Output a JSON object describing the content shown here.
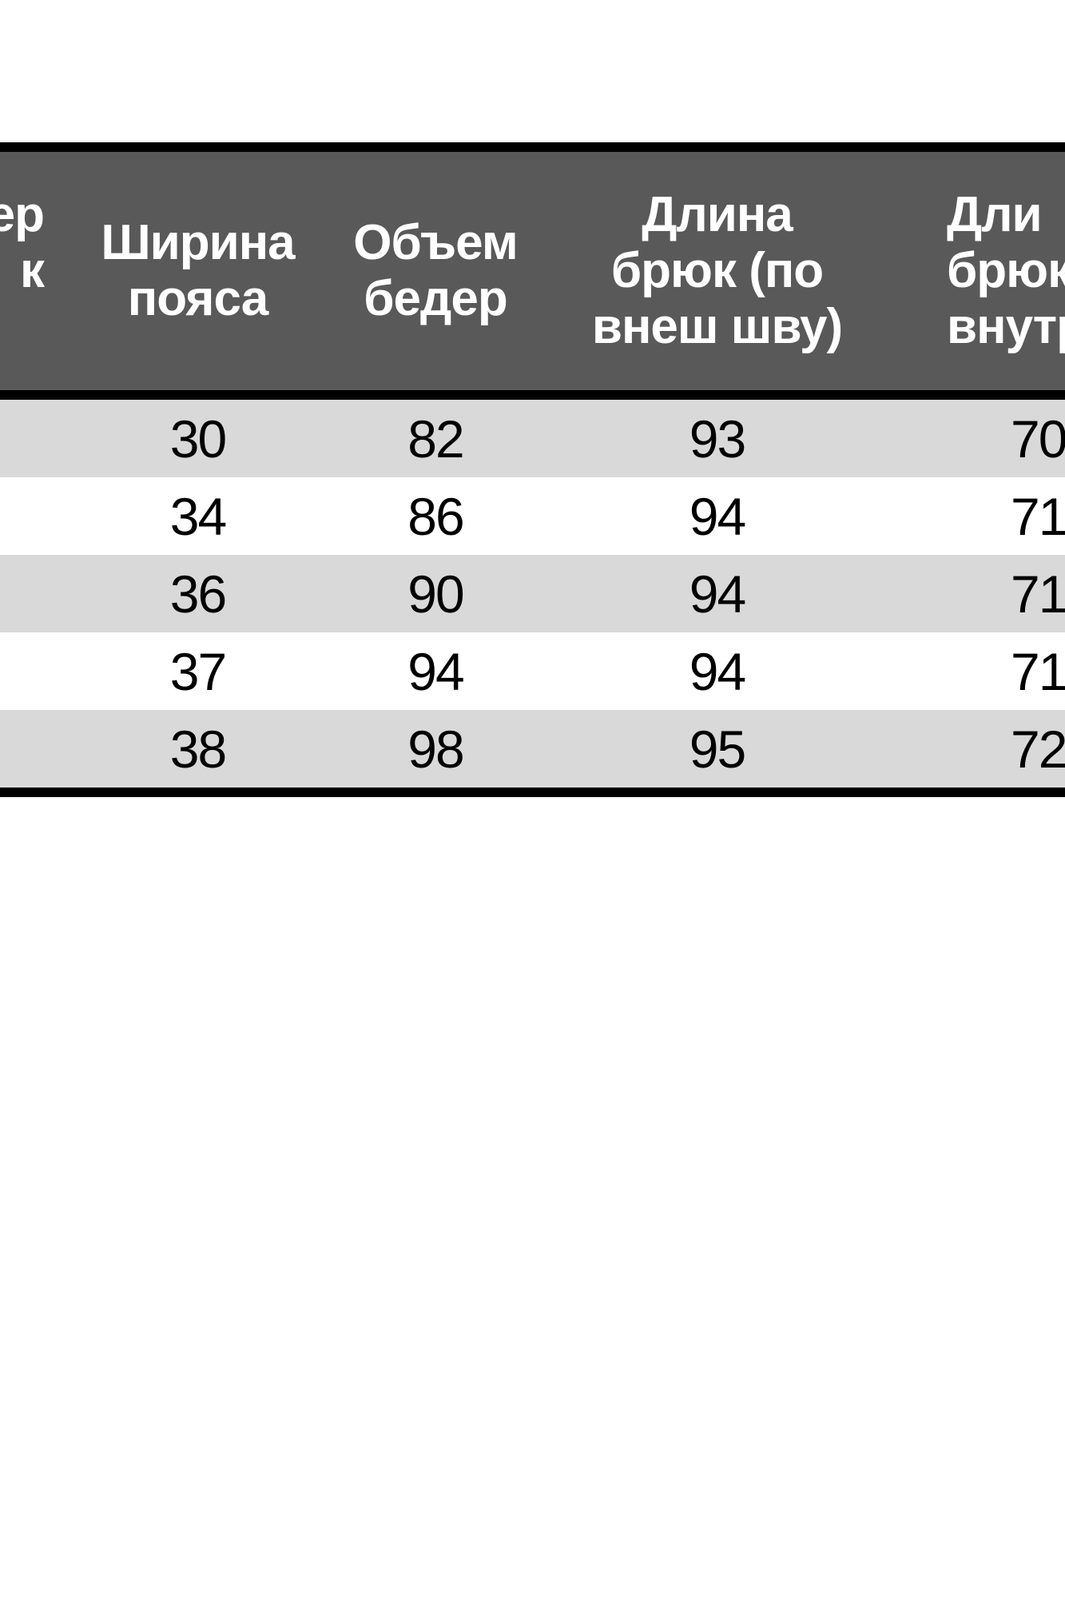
{
  "chart_data": {
    "type": "table",
    "title": "",
    "columns": [
      {
        "key": "size",
        "header_lines": [
          "ер",
          "к",
          ""
        ],
        "clipped": "left",
        "values": [
          "",
          "",
          "",
          "",
          ""
        ]
      },
      {
        "key": "waist_width",
        "header_lines": [
          "Ширина",
          "пояса"
        ],
        "values": [
          "30",
          "34",
          "36",
          "37",
          "38"
        ]
      },
      {
        "key": "hip_volume",
        "header_lines": [
          "Объем",
          "бедер"
        ],
        "values": [
          "82",
          "86",
          "90",
          "94",
          "98"
        ]
      },
      {
        "key": "outer_seam_length",
        "header_lines": [
          "Длина",
          "брюк (по",
          "внеш шву)"
        ],
        "values": [
          "93",
          "94",
          "94",
          "94",
          "95"
        ]
      },
      {
        "key": "inner_seam_length",
        "header_lines": [
          "Дли",
          "брюк",
          "внутр"
        ],
        "clipped": "right",
        "values": [
          "70",
          "71",
          "71",
          "71",
          "72"
        ]
      }
    ],
    "layout": {
      "header_bg": "#595959",
      "row_alt_bg": "#d9d9d9",
      "row_bg": "#ffffff",
      "border_color": "#000000",
      "header_text_color": "#ffffff",
      "cell_text_color": "#000000",
      "grid": "thick horizontal black rules at top, below header and bottom; no vertical rules; table clipped at left and right image edges"
    }
  }
}
